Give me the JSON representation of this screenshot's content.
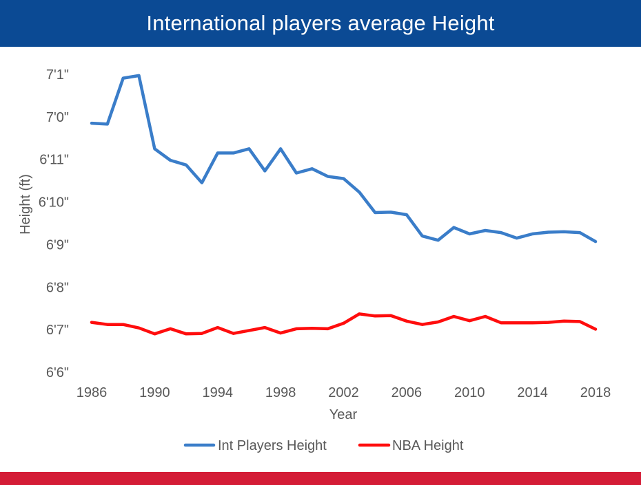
{
  "header": {
    "title": "International players average Height"
  },
  "chart_data": {
    "type": "line",
    "title": "International players average Height",
    "xlabel": "Year",
    "ylabel": "Height (ft)",
    "x": [
      1986,
      1987,
      1988,
      1989,
      1990,
      1991,
      1992,
      1993,
      1994,
      1995,
      1996,
      1997,
      1998,
      1999,
      2000,
      2001,
      2002,
      2003,
      2004,
      2005,
      2006,
      2007,
      2008,
      2009,
      2010,
      2011,
      2012,
      2013,
      2014,
      2015,
      2016,
      2017,
      2018
    ],
    "xticks": [
      1986,
      1990,
      1994,
      1998,
      2002,
      2006,
      2010,
      2014,
      2018
    ],
    "xtick_labels": [
      "1986",
      "1990",
      "1994",
      "1998",
      "2002",
      "2006",
      "2010",
      "2014",
      "2018"
    ],
    "ylim": [
      78,
      85
    ],
    "yticks": [
      78,
      79,
      80,
      81,
      82,
      83,
      84,
      85
    ],
    "ytick_labels": [
      "6'6\"",
      "6'7\"",
      "6'8\"",
      "6'9\"",
      "6'10\"",
      "6'11\"",
      "7'0\"",
      "7'1\""
    ],
    "series": [
      {
        "name": "Int Players Height",
        "color": "#3a7dc9",
        "values": [
          83.85,
          83.83,
          84.91,
          84.97,
          83.25,
          82.98,
          82.87,
          82.45,
          83.15,
          83.15,
          83.25,
          82.73,
          83.25,
          82.68,
          82.78,
          82.6,
          82.55,
          82.23,
          81.75,
          81.76,
          81.7,
          81.2,
          81.1,
          81.4,
          81.25,
          81.33,
          81.28,
          81.15,
          81.25,
          81.29,
          81.3,
          81.28,
          81.07
        ]
      },
      {
        "name": "NBA Height",
        "color": "#ff0d0d",
        "values": [
          79.17,
          79.12,
          79.12,
          79.04,
          78.9,
          79.02,
          78.9,
          78.91,
          79.05,
          78.91,
          78.98,
          79.05,
          78.92,
          79.02,
          79.03,
          79.02,
          79.15,
          79.37,
          79.32,
          79.33,
          79.2,
          79.12,
          79.18,
          79.31,
          79.21,
          79.31,
          79.16,
          79.16,
          79.16,
          79.17,
          79.2,
          79.19,
          79.01
        ]
      }
    ],
    "grid": false,
    "legend_position": "bottom"
  }
}
